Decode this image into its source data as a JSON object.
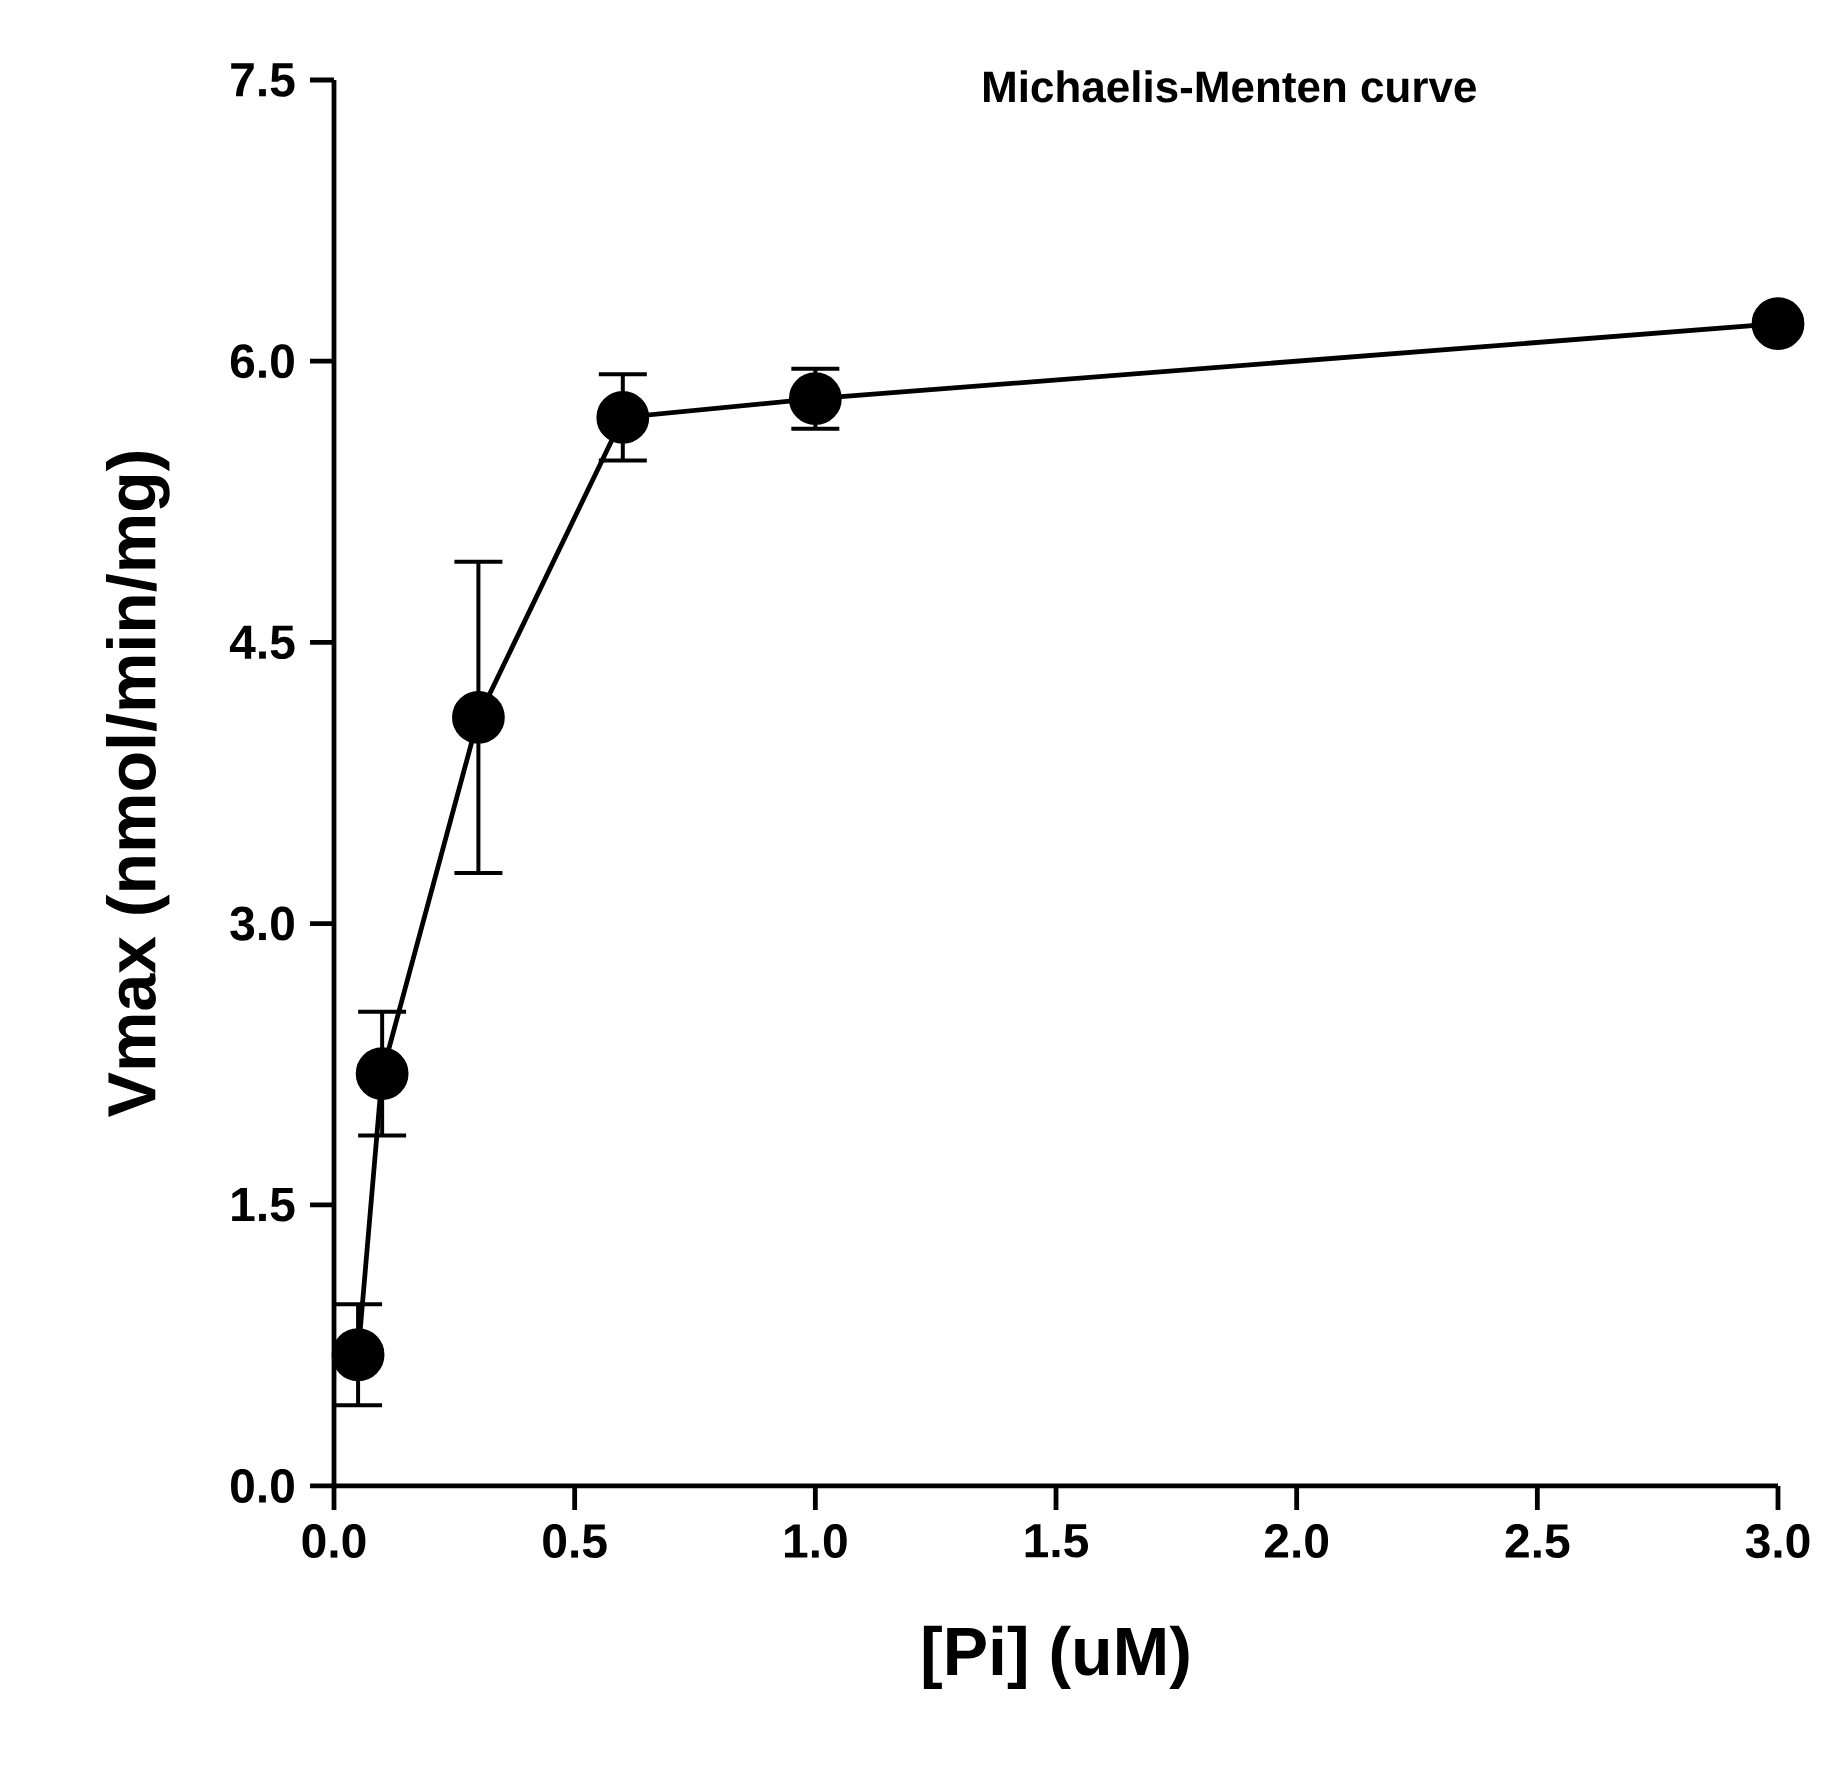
{
  "chart_data": {
    "type": "line",
    "title": "Michaelis-Menten curve",
    "xlabel": "[Pi] (uM)",
    "ylabel": "Vmax (nmol/min/mg)",
    "x": [
      0.05,
      0.1,
      0.3,
      0.6,
      1.0,
      3.0
    ],
    "series": [
      {
        "color": "#000000",
        "values": [
          0.7,
          2.2,
          4.1,
          5.7,
          5.8,
          6.2
        ],
        "errors": [
          0.27,
          0.33,
          0.83,
          0.23,
          0.16,
          null
        ]
      }
    ],
    "xlim": [
      0,
      3.0
    ],
    "xticks": [
      {
        "value": 0,
        "label": "0.0"
      },
      0.5,
      {
        "value": 1,
        "label": "1.0"
      },
      1.5,
      {
        "value": 2,
        "label": "2.0"
      },
      2.5,
      {
        "value": 3,
        "label": "3.0"
      }
    ],
    "ylim": [
      0,
      7.5
    ],
    "yticks": [
      {
        "value": 0,
        "label": "0.0"
      },
      1.5,
      {
        "value": 3,
        "label": "3.0"
      },
      4.5,
      {
        "value": 6,
        "label": "6.0"
      },
      7.5
    ],
    "marker": "circle",
    "line_style": "solid",
    "grid": false,
    "legend": false
  }
}
